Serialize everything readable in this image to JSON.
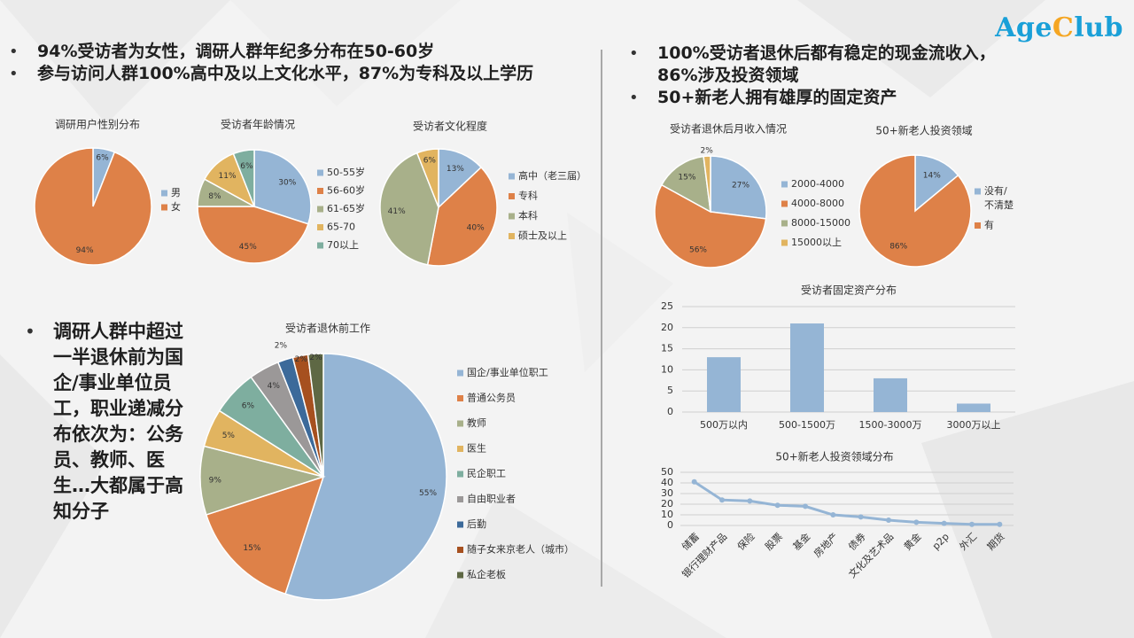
{
  "logo": {
    "part1": "Age",
    "part2": "C",
    "part3": "lub"
  },
  "bullets_left": [
    "94%受访者为女性，调研人群年纪多分布在50-60岁",
    "参与访问人群100%高中及以上文化水平，87%为专科及以上学历"
  ],
  "bullets_right": [
    "100%受访者退休后都有稳定的现金流收入，86%涉及投资领域",
    "50+新老人拥有雄厚的固定资产"
  ],
  "bullet_work": "调研人群中超过一半退休前为国企/事业单位员工，职业递减分布依次为：公务员、教师、医生…大都属于高知分子",
  "colors": {
    "blue": "#95b5d5",
    "orange": "#de8148",
    "olive": "#a8b08a",
    "gold": "#e1b460",
    "teal": "#7eae9f",
    "gray": "#9b9898",
    "navy": "#3c6a9a",
    "rust": "#a6501f",
    "darkolive": "#5e6844"
  },
  "chart_data": [
    {
      "id": "gender",
      "type": "pie",
      "title": "调研用户性别分布",
      "categories": [
        "男",
        "女"
      ],
      "values": [
        6,
        94
      ],
      "colors": [
        "#95b5d5",
        "#de8148"
      ],
      "labels": [
        "6%",
        "94%"
      ]
    },
    {
      "id": "age",
      "type": "pie",
      "title": "受访者年龄情况",
      "categories": [
        "50-55岁",
        "56-60岁",
        "61-65岁",
        "65-70",
        "70以上"
      ],
      "values": [
        30,
        45,
        8,
        11,
        6
      ],
      "colors": [
        "#95b5d5",
        "#de8148",
        "#a8b08a",
        "#e1b460",
        "#7eae9f"
      ],
      "labels": [
        "30%",
        "45%",
        "8%",
        "11%",
        "6%"
      ]
    },
    {
      "id": "edu",
      "type": "pie",
      "title": "受访者文化程度",
      "categories": [
        "高中（老三届）",
        "专科",
        "本科",
        "硕士及以上"
      ],
      "values": [
        13,
        40,
        41,
        6
      ],
      "colors": [
        "#95b5d5",
        "#de8148",
        "#a8b08a",
        "#e1b460"
      ],
      "labels": [
        "13%",
        "40%",
        "41%",
        "6%"
      ]
    },
    {
      "id": "income",
      "type": "pie",
      "title": "受访者退休后月收入情况",
      "categories": [
        "2000-4000",
        "4000-8000",
        "8000-15000",
        "15000以上"
      ],
      "values": [
        27,
        56,
        15,
        2
      ],
      "colors": [
        "#95b5d5",
        "#de8148",
        "#a8b08a",
        "#e1b460"
      ],
      "labels": [
        "27%",
        "56%",
        "15%",
        "2%"
      ]
    },
    {
      "id": "invest",
      "type": "pie",
      "title": "50+新老人投资领域",
      "categories": [
        "没有/不清楚",
        "有"
      ],
      "values": [
        14,
        86
      ],
      "colors": [
        "#95b5d5",
        "#de8148"
      ],
      "labels": [
        "14%",
        "86%"
      ]
    },
    {
      "id": "work",
      "type": "pie",
      "title": "受访者退休前工作",
      "categories": [
        "国企/事业单位职工",
        "普通公务员",
        "教师",
        "医生",
        "民企职工",
        "自由职业者",
        "后勤",
        "随子女来京老人（城市）",
        "私企老板"
      ],
      "values": [
        55,
        15,
        9,
        5,
        6,
        4,
        2,
        2,
        2
      ],
      "colors": [
        "#95b5d5",
        "#de8148",
        "#a8b08a",
        "#e1b460",
        "#7eae9f",
        "#9b9898",
        "#3c6a9a",
        "#a6501f",
        "#5e6844"
      ],
      "labels": [
        "55%",
        "15%",
        "9%",
        "5%",
        "6%",
        "4%",
        "2%",
        "2%",
        "2%"
      ]
    },
    {
      "id": "assets",
      "type": "bar",
      "title": "受访者固定资产分布",
      "categories": [
        "500万以内",
        "500-1500万",
        "1500-3000万",
        "3000万以上"
      ],
      "values": [
        13,
        21,
        8,
        2
      ],
      "ylim": [
        0,
        25
      ],
      "yticks": [
        0,
        5,
        10,
        15,
        20,
        25
      ],
      "grid": true,
      "color": "#95b5d5"
    },
    {
      "id": "invest_fields",
      "type": "line",
      "title": "50+新老人投资领域分布",
      "categories": [
        "储蓄",
        "银行理财产品",
        "保险",
        "股票",
        "基金",
        "房地产",
        "债券",
        "文化及艺术品",
        "黄金",
        "p2p",
        "外汇",
        "期货"
      ],
      "values": [
        41,
        24,
        23,
        19,
        18,
        10,
        8,
        5,
        3,
        2,
        1,
        1
      ],
      "ylim": [
        0,
        50
      ],
      "yticks": [
        0,
        10,
        20,
        30,
        40,
        50
      ],
      "grid": true,
      "color": "#95b5d5"
    }
  ]
}
